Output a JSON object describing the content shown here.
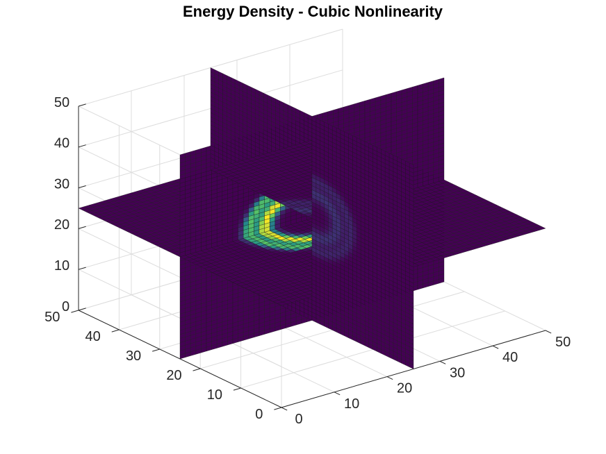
{
  "chart_data": {
    "type": "heatmap",
    "subtype": "volumetric-slices",
    "title": "Energy Density - Cubic Nonlinearity",
    "xlabel": "",
    "ylabel": "",
    "zlabel": "",
    "x_ticks": [
      "0",
      "10",
      "20",
      "30",
      "40",
      "50"
    ],
    "y_ticks": [
      "0",
      "10",
      "20",
      "30",
      "40",
      "50"
    ],
    "z_ticks": [
      "0",
      "10",
      "20",
      "30",
      "40",
      "50"
    ],
    "xlim": [
      0,
      50
    ],
    "ylim": [
      0,
      50
    ],
    "zlim": [
      0,
      50
    ],
    "grid": true,
    "colormap": "viridis",
    "slice_positions": {
      "x": 25,
      "y": 25,
      "z": 25
    },
    "grid_resolution": 50,
    "energy_feature": {
      "shape": "curved L-shaped double band",
      "center_approx": [
        22,
        24,
        26
      ],
      "peak_value_normalized": 1.0,
      "background_value_normalized": 0.0
    },
    "colors": {
      "low": "#440154",
      "mid_low": "#3b528b",
      "mid": "#21918c",
      "mid_high": "#5ec962",
      "high": "#fde725"
    }
  }
}
